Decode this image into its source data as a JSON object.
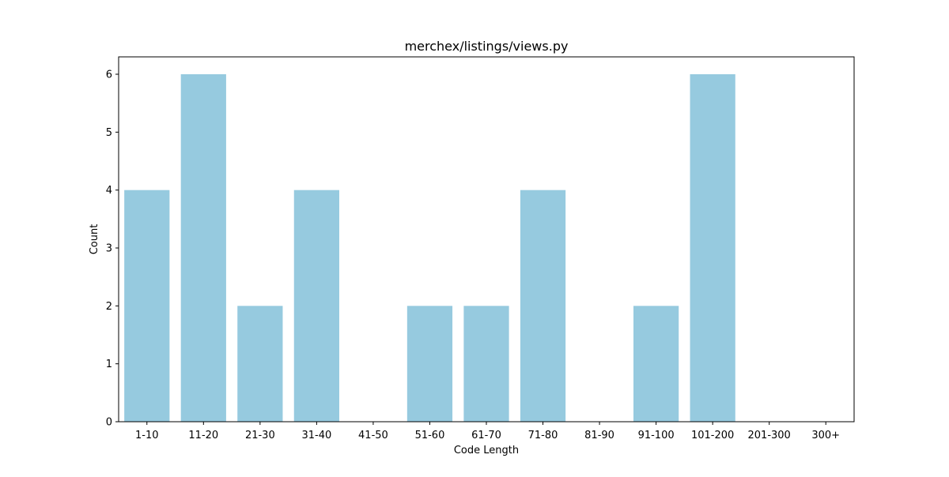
{
  "chart_data": {
    "type": "bar",
    "title": "merchex/listings/views.py",
    "xlabel": "Code Length",
    "ylabel": "Count",
    "categories": [
      "1-10",
      "11-20",
      "21-30",
      "31-40",
      "41-50",
      "51-60",
      "61-70",
      "71-80",
      "81-90",
      "91-100",
      "101-200",
      "201-300",
      "300+"
    ],
    "values": [
      4,
      6,
      2,
      4,
      0,
      2,
      2,
      4,
      0,
      2,
      6,
      0,
      0
    ],
    "ylim": [
      0,
      6.3
    ],
    "yticks": [
      0,
      1,
      2,
      3,
      4,
      5,
      6
    ],
    "grid": false,
    "legend": "none",
    "colors": {
      "bar": "#96cadf",
      "axis": "#000000",
      "background": "#ffffff"
    }
  }
}
